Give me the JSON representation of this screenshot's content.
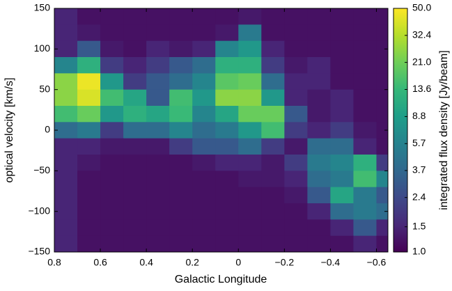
{
  "chart_data": {
    "type": "heatmap",
    "xlabel": "Galactic Longitude",
    "ylabel": "optical velocity [km/s]",
    "colorbar_label": "integrated flux density [Jy/beam]",
    "colormap": "viridis",
    "xlim": [
      0.8,
      -0.65
    ],
    "ylim": [
      -150,
      150
    ],
    "xticks": [
      0.8,
      0.6,
      0.4,
      0.2,
      0,
      {
        "value": -0.2,
        "label": "−0.2"
      },
      {
        "value": -0.4,
        "label": "−0.4"
      },
      {
        "value": -0.6,
        "label": "−0.6"
      }
    ],
    "yticks": [
      150,
      100,
      50,
      0,
      {
        "value": -50,
        "label": "−50"
      },
      {
        "value": -100,
        "label": "−100"
      },
      {
        "value": -150,
        "label": "−150"
      }
    ],
    "clim": [
      1,
      50
    ],
    "clog": true,
    "cticks": [
      {
        "value": 1.0,
        "label": "1.0"
      },
      1.5,
      2.4,
      3.7,
      5.7,
      8.8,
      13.6,
      {
        "value": 21.0,
        "label": "21.0"
      },
      32.4,
      {
        "value": 50.0,
        "label": "50.0"
      }
    ],
    "xbins": [
      0.8,
      0.7,
      0.6,
      0.5,
      0.4,
      0.3,
      0.2,
      0.1,
      0,
      -0.1,
      -0.2,
      -0.3,
      -0.4,
      -0.5,
      -0.6,
      -0.65
    ],
    "ybins": [
      150,
      130,
      110,
      90,
      70,
      50,
      30,
      10,
      -10,
      -30,
      -50,
      -70,
      -90,
      -110,
      -130,
      -150
    ],
    "values": [
      [
        1.5,
        1.2,
        1.2,
        1.2,
        1.2,
        1.2,
        1.2,
        1.2,
        1.3,
        1.2,
        1.2,
        1.2,
        1.2,
        1.2,
        1.2
      ],
      [
        1.5,
        1.3,
        1.2,
        1.2,
        1.2,
        1.2,
        1.2,
        1.3,
        5,
        1.2,
        1.2,
        1.2,
        1.2,
        1.2,
        1.2
      ],
      [
        1.5,
        3,
        1.3,
        1.2,
        1.5,
        1.3,
        1.5,
        6,
        8,
        1.5,
        1.2,
        1.2,
        1.2,
        1.2,
        1.2
      ],
      [
        6,
        12,
        2,
        1.5,
        2,
        3,
        4,
        12,
        12,
        2,
        1.3,
        1.5,
        1.2,
        1.2,
        1.2
      ],
      [
        25,
        45,
        8,
        2,
        3,
        4,
        6,
        18,
        20,
        4,
        1.5,
        1.5,
        1.2,
        1.2,
        1.2
      ],
      [
        25,
        40,
        15,
        10,
        3,
        15,
        8,
        25,
        25,
        8,
        1.5,
        1.3,
        1.5,
        1.2,
        1.2
      ],
      [
        15,
        20,
        8,
        12,
        10,
        14,
        6,
        10,
        20,
        20,
        3,
        1.3,
        1.5,
        1.2,
        1.2
      ],
      [
        4,
        5,
        2,
        4,
        4,
        6,
        4,
        5,
        8,
        15,
        2,
        1.5,
        2,
        1.3,
        1.2
      ],
      [
        1.5,
        1.5,
        1.3,
        1.3,
        1.3,
        2,
        3,
        3,
        4,
        2,
        1.3,
        4,
        4,
        1.5,
        1.2
      ],
      [
        1.5,
        1.3,
        1.2,
        1.2,
        1.2,
        1.2,
        1.3,
        1.5,
        1.5,
        1.3,
        2,
        5,
        6,
        12,
        2
      ],
      [
        1.5,
        1.2,
        1.2,
        1.2,
        1.2,
        1.2,
        1.2,
        1.2,
        1.3,
        1.3,
        1.5,
        4,
        5,
        15,
        6
      ],
      [
        1.5,
        1.2,
        1.2,
        1.2,
        1.2,
        1.2,
        1.2,
        1.2,
        1.2,
        1.2,
        1.3,
        3,
        10,
        5,
        3
      ],
      [
        1.5,
        1.2,
        1.2,
        1.2,
        1.2,
        1.2,
        1.2,
        1.2,
        1.2,
        1.2,
        1.2,
        1.5,
        4,
        5,
        4
      ],
      [
        1.5,
        1.2,
        1.2,
        1.2,
        1.2,
        1.2,
        1.2,
        1.2,
        1.2,
        1.2,
        1.2,
        1.2,
        1.5,
        3,
        1.5
      ],
      [
        1.5,
        1.2,
        1.2,
        1.2,
        1.2,
        1.2,
        1.2,
        1.2,
        1.2,
        1.2,
        1.2,
        1.2,
        1.2,
        1.5,
        1.2
      ]
    ]
  }
}
